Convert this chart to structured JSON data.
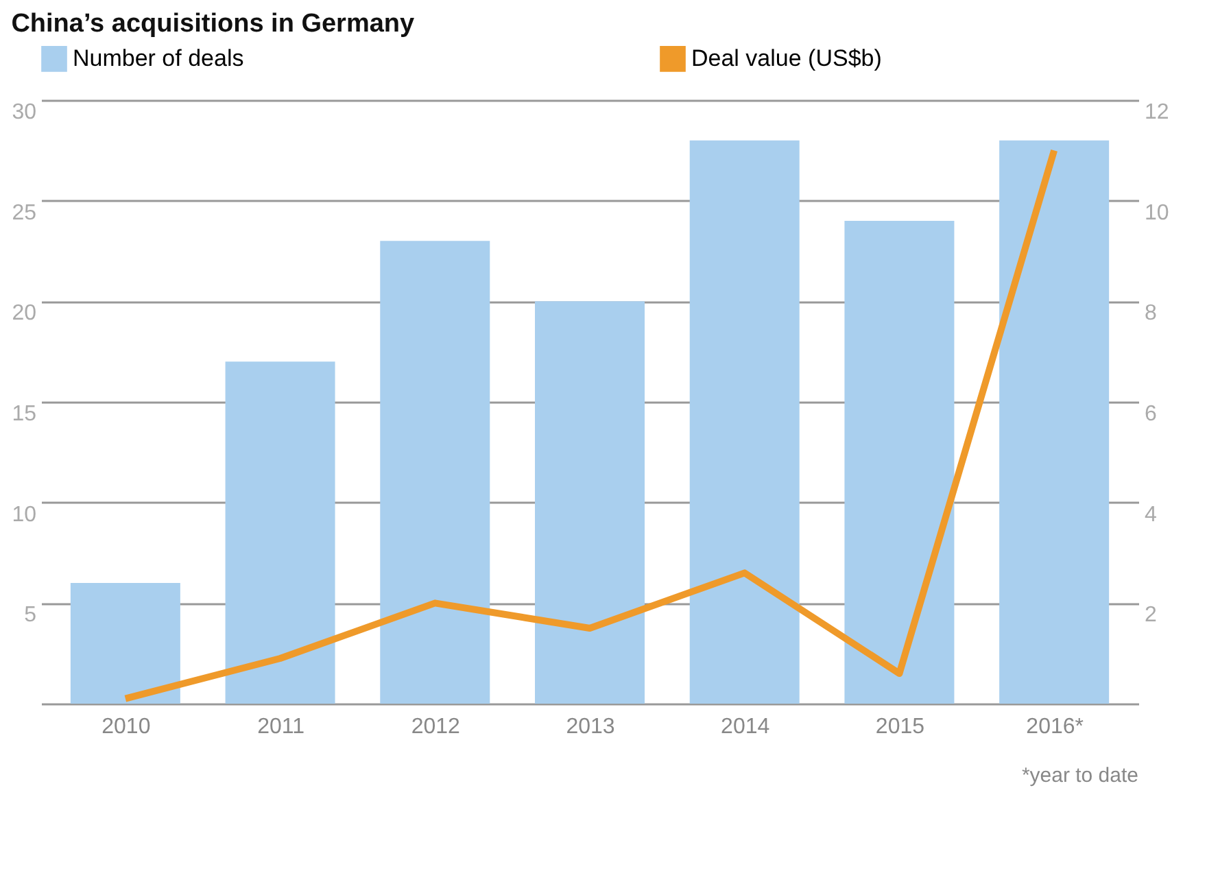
{
  "chart_data": {
    "type": "bar",
    "title": "China’s acquisitions in Germany",
    "categories": [
      "2010",
      "2011",
      "2012",
      "2013",
      "2014",
      "2015",
      "2016*"
    ],
    "series": [
      {
        "name": "Number of deals",
        "color": "#a9cfee",
        "values": [
          6,
          17,
          23,
          20,
          28,
          24,
          28
        ]
      },
      {
        "name": "Deal value (US$b)",
        "type": "line",
        "axis": "y2",
        "color": "#ef9a2a",
        "values": [
          0.1,
          0.9,
          2.0,
          1.5,
          2.6,
          0.6,
          11.0
        ]
      }
    ],
    "ylim": [
      0,
      30
    ],
    "yticks": [
      {
        "value": 0,
        "label": null
      },
      5,
      10,
      15,
      20,
      25,
      30
    ],
    "y2lim": [
      0,
      12
    ],
    "y2ticks": [
      2,
      4,
      6,
      8,
      10,
      12
    ],
    "grid": "y",
    "legend": "top",
    "marker": "none",
    "line_style": "solid",
    "annotations": [
      "*year to date"
    ]
  }
}
